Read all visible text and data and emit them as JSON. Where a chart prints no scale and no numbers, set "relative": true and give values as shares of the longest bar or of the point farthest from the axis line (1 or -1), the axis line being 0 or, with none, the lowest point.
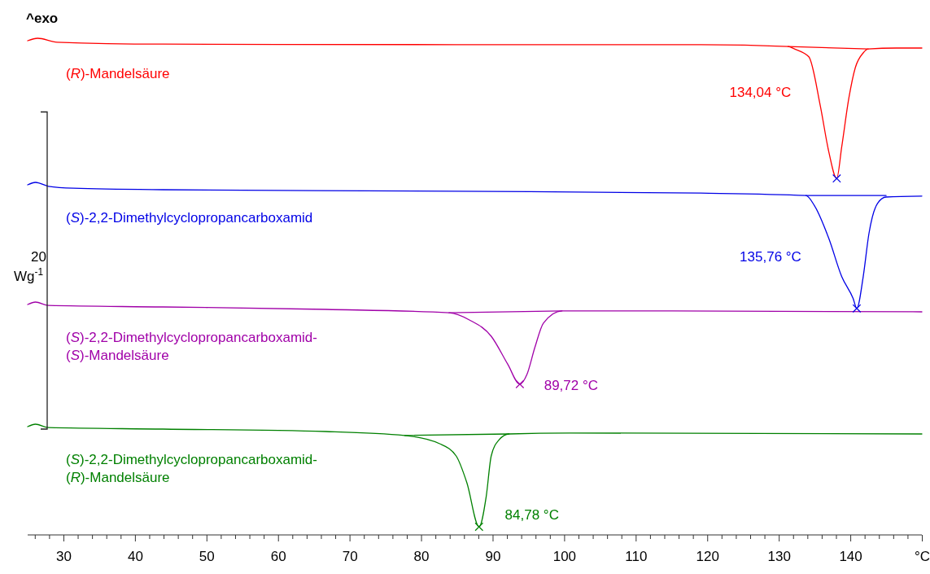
{
  "chart_data": {
    "type": "line",
    "relative": true,
    "tick_labels": "x",
    "xlim": [
      25,
      150
    ],
    "xticks": [
      {
        "value": 26,
        "label": null
      },
      {
        "value": 28,
        "label": null
      },
      30,
      {
        "value": 32,
        "label": null
      },
      {
        "value": 34,
        "label": null
      },
      {
        "value": 36,
        "label": null
      },
      {
        "value": 38,
        "label": null
      },
      40,
      {
        "value": 42,
        "label": null
      },
      {
        "value": 44,
        "label": null
      },
      {
        "value": 46,
        "label": null
      },
      {
        "value": 48,
        "label": null
      },
      50,
      {
        "value": 52,
        "label": null
      },
      {
        "value": 54,
        "label": null
      },
      {
        "value": 56,
        "label": null
      },
      {
        "value": 58,
        "label": null
      },
      60,
      {
        "value": 62,
        "label": null
      },
      {
        "value": 64,
        "label": null
      },
      {
        "value": 66,
        "label": null
      },
      {
        "value": 68,
        "label": null
      },
      70,
      {
        "value": 72,
        "label": null
      },
      {
        "value": 74,
        "label": null
      },
      {
        "value": 76,
        "label": null
      },
      {
        "value": 78,
        "label": null
      },
      80,
      {
        "value": 82,
        "label": null
      },
      {
        "value": 84,
        "label": null
      },
      {
        "value": 86,
        "label": null
      },
      {
        "value": 88,
        "label": null
      },
      90,
      {
        "value": 92,
        "label": null
      },
      {
        "value": 94,
        "label": null
      },
      {
        "value": 96,
        "label": null
      },
      {
        "value": 98,
        "label": null
      },
      100,
      {
        "value": 102,
        "label": null
      },
      {
        "value": 104,
        "label": null
      },
      {
        "value": 106,
        "label": null
      },
      {
        "value": 108,
        "label": null
      },
      110,
      {
        "value": 112,
        "label": null
      },
      {
        "value": 114,
        "label": null
      },
      {
        "value": 116,
        "label": null
      },
      {
        "value": 118,
        "label": null
      },
      120,
      {
        "value": 122,
        "label": null
      },
      {
        "value": 124,
        "label": null
      },
      {
        "value": 126,
        "label": null
      },
      {
        "value": 128,
        "label": null
      },
      130,
      {
        "value": 132,
        "label": null
      },
      {
        "value": 134,
        "label": null
      },
      {
        "value": 136,
        "label": null
      },
      {
        "value": 138,
        "label": null
      },
      140,
      {
        "value": 142,
        "label": null
      },
      {
        "value": 144,
        "label": null
      },
      {
        "value": 146,
        "label": null
      },
      {
        "value": 148,
        "label": null
      },
      {
        "value": 150,
        "label": "°C"
      }
    ],
    "series": [
      {
        "type": "line",
        "name": "(R)-Mandelsäure",
        "color": "#ff0000",
        "marker": "none",
        "x": [
          25.0,
          26.4,
          29.1,
          43.9,
          84.9,
          119.1,
          131.3,
          132.2,
          134.2,
          135.8,
          137.0,
          138.1,
          138.8,
          139.8,
          140.7,
          141.8,
          142.5,
          146.4,
          150
        ],
        "values": [
          0.995,
          1.0,
          0.992,
          0.988,
          0.987,
          0.987,
          0.983,
          0.978,
          0.962,
          0.862,
          0.767,
          0.713,
          0.778,
          0.878,
          0.94,
          0.97,
          0.978,
          0.98,
          0.98
        ]
      },
      {
        "type": "line",
        "name": "(S)-2,2-Dimethylcyclopropancarboxamid",
        "color": "#0000e6",
        "marker": "none",
        "x": [
          25.0,
          26.1,
          27.9,
          31.4,
          43.9,
          84.9,
          119.1,
          133.8,
          135.0,
          137.0,
          138.8,
          140.4,
          140.9,
          141.8,
          142.6,
          143.8,
          145.0,
          150
        ],
        "values": [
          0.7,
          0.705,
          0.697,
          0.693,
          0.69,
          0.687,
          0.683,
          0.678,
          0.657,
          0.59,
          0.512,
          0.467,
          0.447,
          0.512,
          0.6,
          0.662,
          0.675,
          0.677
        ]
      },
      {
        "type": "line",
        "name": "(S)-2,2-Dimethylcyclopropancarboxamid-\n(S)-Mandelsäure",
        "color": "#a000a8",
        "marker": "none",
        "x": [
          25.0,
          26.1,
          27.9,
          43.9,
          66.7,
          83.9,
          86.8,
          89.8,
          92.1,
          93.8,
          94.8,
          95.9,
          97.1,
          99.7,
          107.7,
          150
        ],
        "values": [
          0.455,
          0.46,
          0.453,
          0.45,
          0.445,
          0.438,
          0.423,
          0.39,
          0.333,
          0.292,
          0.312,
          0.367,
          0.417,
          0.442,
          0.442,
          0.44
        ]
      },
      {
        "type": "line",
        "name": "(S)-2,2-Dimethylcyclopropancarboxamid-\n(R)-Mandelsäure",
        "color": "#008000",
        "marker": "none",
        "x": [
          25.0,
          26.1,
          27.9,
          43.9,
          66.7,
          77.7,
          82.6,
          84.9,
          86.4,
          88.1,
          89.1,
          89.8,
          90.9,
          92.3,
          100.8,
          150
        ],
        "values": [
          0.205,
          0.21,
          0.203,
          0.2,
          0.195,
          0.187,
          0.17,
          0.145,
          0.09,
          0,
          0.062,
          0.145,
          0.178,
          0.19,
          0.192,
          0.19
        ]
      },
      {
        "type": "line",
        "color": "#ff0000",
        "marker": "none",
        "x": [
          131.3,
          142.5
        ],
        "values": [
          0.983,
          0.978
        ]
      },
      {
        "type": "line",
        "color": "#0000e6",
        "marker": "none",
        "x": [
          133.8,
          145.0
        ],
        "values": [
          0.678,
          0.678
        ]
      },
      {
        "type": "line",
        "color": "#a000a8",
        "marker": "none",
        "x": [
          83.9,
          99.7
        ],
        "values": [
          0.438,
          0.442
        ]
      },
      {
        "type": "line",
        "color": "#008000",
        "marker": "none",
        "x": [
          77.7,
          92.3
        ],
        "values": [
          0.187,
          0.19
        ]
      },
      {
        "type": "scatter",
        "marker": "cross",
        "x": [
          138.1,
          140.9,
          93.8,
          88.1
        ],
        "values": [
          0.713,
          0.447,
          0.292,
          0
        ],
        "colors": [
          "#0000e6",
          "#0000e6",
          "#a000a8",
          "#008000"
        ]
      }
    ],
    "annotations": [
      "^exo",
      "20",
      "Wg$^{-1}$",
      "134,04 °C",
      "135,76 °C",
      "89,72 °C",
      "84,78 °C"
    ]
  }
}
